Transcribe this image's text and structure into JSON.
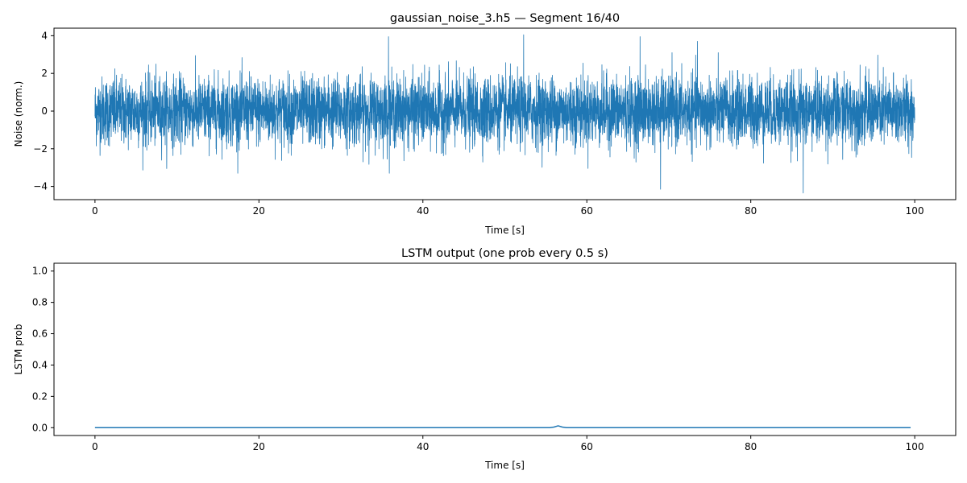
{
  "chart_data": [
    {
      "type": "line",
      "title": "gaussian_noise_3.h5 — Segment 16/40",
      "xlabel": "Time [s]",
      "ylabel": "Noise (norm.)",
      "xlim": [
        -5,
        105
      ],
      "ylim": [
        -4.7,
        4.4
      ],
      "xticks": [
        0,
        20,
        40,
        60,
        80,
        100
      ],
      "yticks": [
        -4,
        -2,
        0,
        2,
        4
      ],
      "grid": false,
      "legend": "none",
      "series_color": "#1f77b4",
      "series": [
        {
          "description_of_signal": "",
          "x_range": [
            0,
            100
          ],
          "mean": 0,
          "std": 0.9,
          "min": -4.35,
          "max": 4.05,
          "notable_peaks": [
            {
              "x": 35.8,
              "y": 3.95
            },
            {
              "x": 52.3,
              "y": 4.05
            },
            {
              "x": 66.5,
              "y": 3.95
            },
            {
              "x": 69.0,
              "y": -4.15
            },
            {
              "x": 86.4,
              "y": -4.35
            },
            {
              "x": 73.5,
              "y": 3.7
            }
          ]
        }
      ]
    },
    {
      "type": "line",
      "title": "LSTM output (one prob every 0.5 s)",
      "xlabel": "Time [s]",
      "ylabel": "LSTM prob",
      "xlim": [
        -5,
        105
      ],
      "ylim": [
        -0.05,
        1.05
      ],
      "xticks": [
        0,
        20,
        40,
        60,
        80,
        100
      ],
      "yticks": [
        0.0,
        0.2,
        0.4,
        0.6,
        0.8,
        1.0
      ],
      "grid": false,
      "legend": "none",
      "series_color": "#1f77b4",
      "series": [
        {
          "x_step": 0.5,
          "x_range": [
            0,
            99.5
          ],
          "baseline": 0.0,
          "bumps": [
            {
              "x": 56.0,
              "y": 0.004
            },
            {
              "x": 56.5,
              "y": 0.012
            },
            {
              "x": 57.0,
              "y": 0.004
            }
          ]
        }
      ]
    }
  ]
}
